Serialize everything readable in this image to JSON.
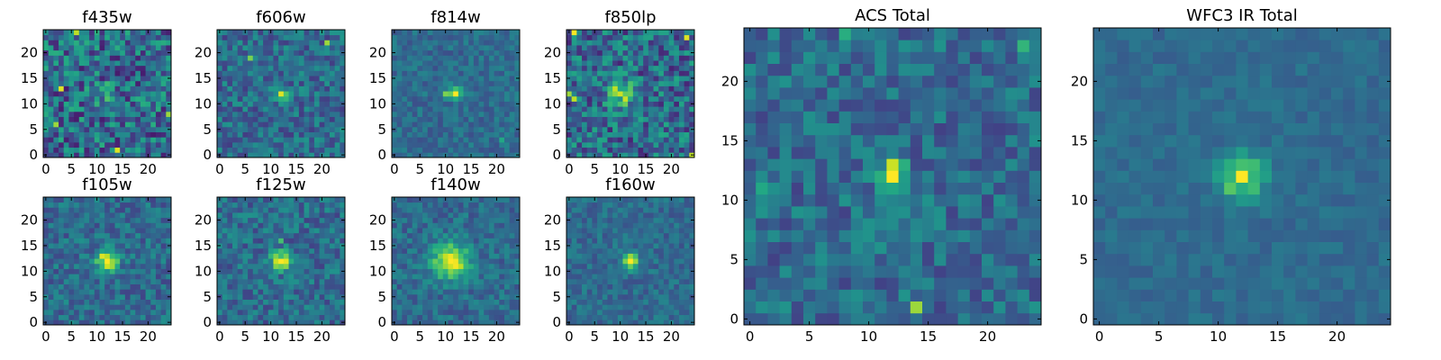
{
  "chart_data": [
    {
      "type": "heatmap",
      "title": "f435w",
      "xticks": [
        "0",
        "5",
        "10",
        "15",
        "20"
      ],
      "yticks": [
        "0",
        "5",
        "10",
        "15",
        "20"
      ],
      "xlim": [
        0,
        25
      ],
      "ylim": [
        0,
        25
      ],
      "colormap": "viridis",
      "peak": [
        12,
        12
      ],
      "peak_value": 0.25,
      "noise": 0.55,
      "spread": 1.5,
      "seed": 11,
      "hot": [
        [
          3,
          13,
          0.95
        ],
        [
          14,
          1,
          0.95
        ],
        [
          6,
          24,
          0.9
        ],
        [
          24,
          8,
          0.85
        ],
        [
          2,
          6,
          0.85
        ]
      ]
    },
    {
      "type": "heatmap",
      "title": "f606w",
      "xticks": [
        "0",
        "5",
        "10",
        "15",
        "20"
      ],
      "yticks": [
        "0",
        "5",
        "10",
        "15",
        "20"
      ],
      "xlim": [
        0,
        25
      ],
      "ylim": [
        0,
        25
      ],
      "colormap": "viridis",
      "peak": [
        12,
        12
      ],
      "peak_value": 0.95,
      "noise": 0.35,
      "spread": 0.8,
      "seed": 22,
      "hot": [
        [
          21,
          22,
          0.85
        ],
        [
          6,
          19,
          0.8
        ]
      ]
    },
    {
      "type": "heatmap",
      "title": "f814w",
      "xticks": [
        "0",
        "5",
        "10",
        "15",
        "20"
      ],
      "yticks": [
        "0",
        "5",
        "10",
        "15",
        "20"
      ],
      "xlim": [
        0,
        25
      ],
      "ylim": [
        0,
        25
      ],
      "colormap": "viridis",
      "peak": [
        12,
        12
      ],
      "peak_value": 1.0,
      "noise": 0.22,
      "spread": 0.9,
      "seed": 33,
      "hot": [
        [
          10,
          12,
          0.8
        ],
        [
          21,
          3,
          0.6
        ]
      ]
    },
    {
      "type": "heatmap",
      "title": "f850lp",
      "xticks": [
        "0",
        "5",
        "10",
        "15",
        "20"
      ],
      "yticks": [
        "0",
        "5",
        "10",
        "15",
        "20"
      ],
      "xlim": [
        0,
        25
      ],
      "ylim": [
        0,
        25
      ],
      "colormap": "viridis",
      "peak": [
        10,
        12
      ],
      "peak_value": 0.7,
      "noise": 0.5,
      "spread": 1.8,
      "seed": 44,
      "hot": [
        [
          1,
          24,
          1.0
        ],
        [
          23,
          23,
          0.95
        ],
        [
          24,
          0,
          0.9
        ],
        [
          1,
          11,
          0.9
        ],
        [
          0,
          12,
          0.85
        ]
      ]
    },
    {
      "type": "heatmap",
      "title": "ACS Total",
      "xticks": [
        "0",
        "5",
        "10",
        "15",
        "20"
      ],
      "yticks": [
        "0",
        "5",
        "10",
        "15",
        "20"
      ],
      "xlim": [
        0,
        25
      ],
      "ylim": [
        0,
        25
      ],
      "colormap": "viridis",
      "peak": [
        12,
        12
      ],
      "peak_value": 1.0,
      "noise": 0.32,
      "spread": 0.9,
      "seed": 55,
      "hot": [
        [
          12,
          13,
          0.92
        ],
        [
          14,
          1,
          0.85
        ],
        [
          23,
          23,
          0.65
        ],
        [
          1,
          11,
          0.6
        ],
        [
          8,
          24,
          0.62
        ]
      ]
    },
    {
      "type": "heatmap",
      "title": "f105w",
      "xticks": [
        "0",
        "5",
        "10",
        "15",
        "20"
      ],
      "yticks": [
        "0",
        "5",
        "10",
        "15",
        "20"
      ],
      "xlim": [
        0,
        25
      ],
      "ylim": [
        0,
        25
      ],
      "colormap": "viridis",
      "peak": [
        12,
        12
      ],
      "peak_value": 1.0,
      "noise": 0.3,
      "spread": 1.4,
      "seed": 66,
      "hot": [
        [
          11,
          13,
          0.95
        ],
        [
          13,
          11,
          0.85
        ]
      ]
    },
    {
      "type": "heatmap",
      "title": "f125w",
      "xticks": [
        "0",
        "5",
        "10",
        "15",
        "20"
      ],
      "yticks": [
        "0",
        "5",
        "10",
        "15",
        "20"
      ],
      "xlim": [
        0,
        25
      ],
      "ylim": [
        0,
        25
      ],
      "colormap": "viridis",
      "peak": [
        12,
        12
      ],
      "peak_value": 1.0,
      "noise": 0.32,
      "spread": 1.3,
      "seed": 77,
      "hot": [
        [
          12,
          16,
          0.7
        ]
      ]
    },
    {
      "type": "heatmap",
      "title": "f140w",
      "xticks": [
        "0",
        "5",
        "10",
        "15",
        "20"
      ],
      "yticks": [
        "0",
        "5",
        "10",
        "15",
        "20"
      ],
      "xlim": [
        0,
        25
      ],
      "ylim": [
        0,
        25
      ],
      "colormap": "viridis",
      "peak": [
        11,
        12
      ],
      "peak_value": 1.0,
      "noise": 0.25,
      "spread": 2.4,
      "seed": 88,
      "hot": [
        [
          12,
          12,
          0.98
        ]
      ]
    },
    {
      "type": "heatmap",
      "title": "f160w",
      "xticks": [
        "0",
        "5",
        "10",
        "15",
        "20"
      ],
      "yticks": [
        "0",
        "5",
        "10",
        "15",
        "20"
      ],
      "xlim": [
        0,
        25
      ],
      "ylim": [
        0,
        25
      ],
      "colormap": "viridis",
      "peak": [
        12,
        12
      ],
      "peak_value": 1.0,
      "noise": 0.22,
      "spread": 1.1,
      "seed": 99,
      "hot": [
        [
          11,
          12,
          0.8
        ]
      ]
    },
    {
      "type": "heatmap",
      "title": "WFC3 IR Total",
      "xticks": [
        "0",
        "5",
        "10",
        "15",
        "20"
      ],
      "yticks": [
        "0",
        "5",
        "10",
        "15",
        "20"
      ],
      "xlim": [
        0,
        25
      ],
      "ylim": [
        0,
        25
      ],
      "colormap": "viridis",
      "peak": [
        12,
        12
      ],
      "peak_value": 1.0,
      "noise": 0.12,
      "spread": 1.2,
      "seed": 111,
      "hot": [
        [
          12,
          13,
          0.7
        ],
        [
          11,
          12,
          0.65
        ],
        [
          13,
          12,
          0.65
        ],
        [
          12,
          11,
          0.62
        ]
      ]
    }
  ]
}
